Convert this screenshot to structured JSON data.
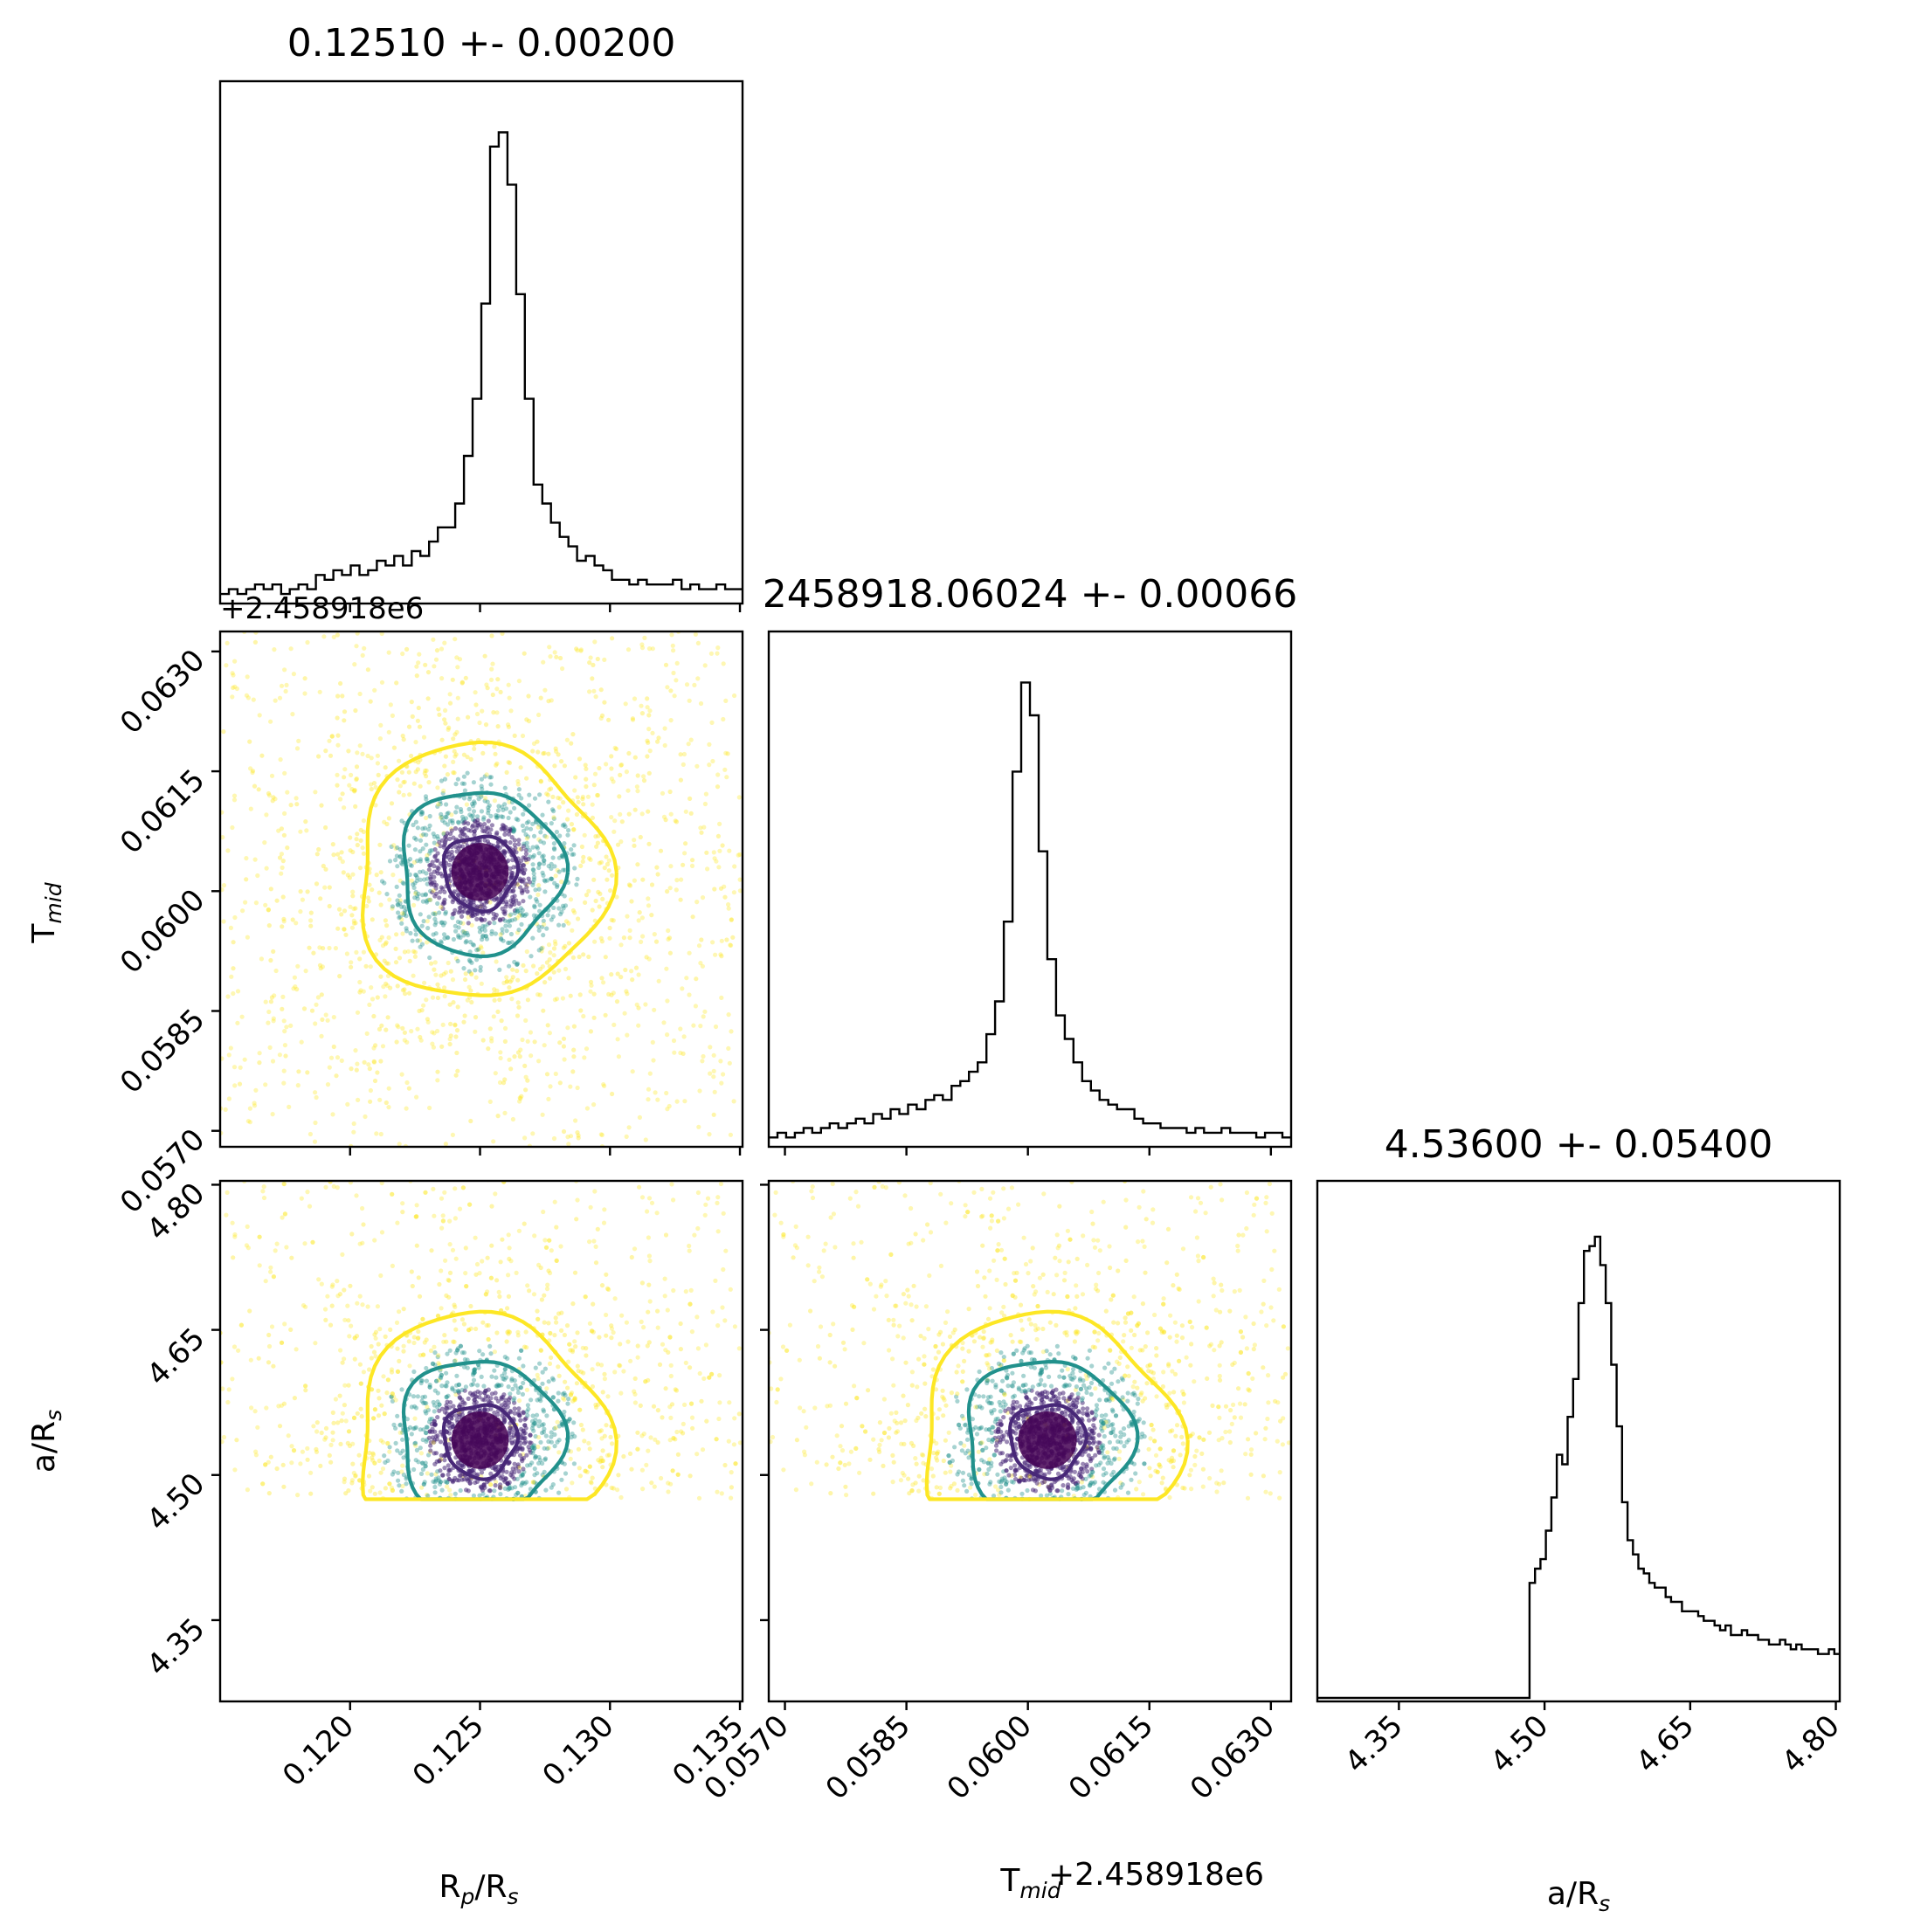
{
  "chart_data": {
    "type": "corner",
    "parameters": [
      {
        "key": "rp",
        "label_main": "R",
        "label_sub": "p",
        "label_mid": "/R",
        "label_sub2": "s",
        "offset_text": "",
        "range": [
          0.115,
          0.1351
        ],
        "ticks": [
          0.12,
          0.125,
          0.13,
          0.135
        ],
        "tick_labels": [
          "0.120",
          "0.125",
          "0.130",
          "0.135"
        ]
      },
      {
        "key": "tmid",
        "label_main": "T",
        "label_sub": "mid",
        "label_mid": "",
        "label_sub2": "",
        "offset_text": "+2.458918e6",
        "range": [
          0.0568,
          0.06325
        ],
        "ticks": [
          0.057,
          0.0585,
          0.06,
          0.0615,
          0.063
        ],
        "tick_labels": [
          "0.0570",
          "0.0585",
          "0.0600",
          "0.0615",
          "0.0630"
        ]
      },
      {
        "key": "ars",
        "label_main": "a/R",
        "label_sub": "s",
        "label_mid": "",
        "label_sub2": "",
        "offset_text": "",
        "range": [
          4.266,
          4.804
        ],
        "ticks": [
          4.35,
          4.5,
          4.65,
          4.8
        ],
        "tick_labels": [
          "4.35",
          "4.50",
          "4.65",
          "4.80"
        ]
      }
    ],
    "titles": [
      "0.12510 +- 0.00200",
      "2458918.06024 +- 0.00066",
      "4.53600 +- 0.05400"
    ],
    "tmid_offset_label": "+2.458918e6",
    "histograms": [
      {
        "param": "rp",
        "bins": [
          0.115,
          0.1351
        ],
        "peak_value": 0.125,
        "peak_height": 1.0,
        "counts": [
          0.02,
          0.03,
          0.02,
          0.03,
          0.04,
          0.03,
          0.04,
          0.02,
          0.03,
          0.04,
          0.03,
          0.06,
          0.05,
          0.07,
          0.06,
          0.08,
          0.06,
          0.07,
          0.09,
          0.08,
          0.1,
          0.08,
          0.11,
          0.1,
          0.13,
          0.16,
          0.16,
          0.21,
          0.31,
          0.43,
          0.63,
          0.96,
          0.99,
          0.88,
          0.65,
          0.43,
          0.25,
          0.21,
          0.17,
          0.14,
          0.12,
          0.09,
          0.1,
          0.08,
          0.07,
          0.05,
          0.05,
          0.04,
          0.05,
          0.04,
          0.04,
          0.04,
          0.05,
          0.03,
          0.04,
          0.03,
          0.03,
          0.04,
          0.03,
          0.03
        ]
      },
      {
        "param": "tmid",
        "bins": [
          0.0568,
          0.06325
        ],
        "peak_value": 0.06024,
        "peak_height": 1.0,
        "counts": [
          0.02,
          0.03,
          0.02,
          0.03,
          0.04,
          0.03,
          0.04,
          0.05,
          0.04,
          0.05,
          0.06,
          0.05,
          0.07,
          0.06,
          0.08,
          0.07,
          0.09,
          0.08,
          0.1,
          0.11,
          0.1,
          0.13,
          0.14,
          0.16,
          0.18,
          0.24,
          0.31,
          0.48,
          0.8,
          0.99,
          0.92,
          0.63,
          0.4,
          0.28,
          0.23,
          0.18,
          0.14,
          0.12,
          0.1,
          0.09,
          0.08,
          0.08,
          0.06,
          0.05,
          0.05,
          0.04,
          0.04,
          0.04,
          0.03,
          0.04,
          0.03,
          0.03,
          0.04,
          0.03,
          0.03,
          0.03,
          0.02,
          0.03,
          0.03,
          0.02
        ]
      },
      {
        "param": "ars",
        "bins": [
          4.266,
          4.804
        ],
        "peak_value": 4.536,
        "peak_height": 1.0,
        "counts": [
          0,
          0,
          0,
          0,
          0,
          0,
          0,
          0,
          0,
          0,
          0,
          0,
          0,
          0,
          0,
          0,
          0,
          0,
          0,
          0,
          0,
          0,
          0,
          0,
          0,
          0,
          0,
          0,
          0,
          0,
          0,
          0,
          0,
          0,
          0,
          0,
          0,
          0,
          0,
          0.25,
          0.28,
          0.3,
          0.36,
          0.43,
          0.52,
          0.5,
          0.6,
          0.68,
          0.84,
          0.95,
          0.96,
          0.98,
          0.92,
          0.84,
          0.71,
          0.58,
          0.42,
          0.34,
          0.31,
          0.28,
          0.27,
          0.25,
          0.24,
          0.24,
          0.22,
          0.21,
          0.21,
          0.19,
          0.19,
          0.19,
          0.18,
          0.17,
          0.17,
          0.16,
          0.15,
          0.16,
          0.14,
          0.14,
          0.15,
          0.14,
          0.14,
          0.13,
          0.13,
          0.12,
          0.12,
          0.13,
          0.12,
          0.11,
          0.12,
          0.11,
          0.11,
          0.11,
          0.1,
          0.1,
          0.11,
          0.1
        ]
      }
    ],
    "joint_distributions": [
      {
        "x": "rp",
        "y": "tmid",
        "center": [
          0.125,
          0.06024
        ],
        "sigma": [
          0.002,
          0.00066
        ],
        "contour_levels": [
          "0.5-sigma",
          "1-sigma",
          "1.5-sigma"
        ],
        "contour_radii_sigma": [
          0.7,
          1.55,
          2.4
        ]
      },
      {
        "x": "rp",
        "y": "ars",
        "center": [
          0.125,
          4.536
        ],
        "sigma": [
          0.002,
          0.054
        ],
        "truncated_below": 4.475,
        "contour_levels": [
          "0.5-sigma",
          "1-sigma",
          "1.5-sigma"
        ],
        "contour_radii_sigma": [
          0.7,
          1.55,
          2.4
        ]
      },
      {
        "x": "tmid",
        "y": "ars",
        "center": [
          0.06024,
          4.536
        ],
        "sigma": [
          0.00066,
          0.054
        ],
        "truncated_below": 4.475,
        "contour_levels": [
          "0.5-sigma",
          "1-sigma",
          "1.5-sigma"
        ],
        "contour_radii_sigma": [
          0.7,
          1.55,
          2.4
        ]
      }
    ],
    "colors": {
      "inner": "#482878",
      "middle": "#21918c",
      "outer": "#fde725",
      "line": "#000000"
    }
  }
}
